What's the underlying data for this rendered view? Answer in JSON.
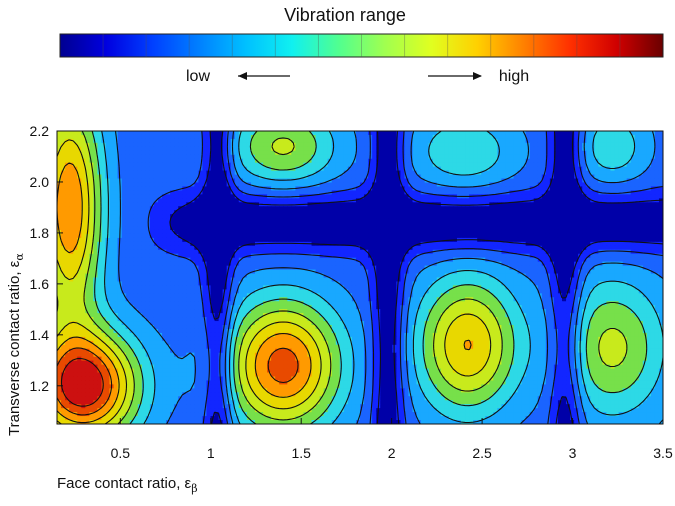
{
  "chart_data": {
    "type": "heatmap",
    "subtype": "filled-contour",
    "colorbar": {
      "title": "Vibration range",
      "low_label": "low",
      "high_label": "high",
      "colors": [
        "#000090",
        "#0000e0",
        "#0040ff",
        "#0080ff",
        "#00c0ff",
        "#10f0f0",
        "#50ff90",
        "#a0ff50",
        "#e0ff20",
        "#ffd000",
        "#ff8000",
        "#ff3000",
        "#d00000",
        "#6a0000"
      ]
    },
    "x_axis": {
      "label": "Face contact ratio, ε",
      "label_subscript": "β",
      "range": [
        0.15,
        3.5
      ],
      "ticks": [
        0.5,
        1,
        1.5,
        2,
        2.5,
        3,
        3.5
      ],
      "tick_labels": [
        "0.5",
        "1",
        "1.5",
        "2",
        "2.5",
        "3",
        "3.5"
      ]
    },
    "y_axis": {
      "label": "Transverse contact ratio, ε",
      "label_subscript": "α",
      "range": [
        1.05,
        2.2
      ],
      "ticks": [
        1.2,
        1.4,
        1.6,
        1.8,
        2.0,
        2.2
      ],
      "tick_labels": [
        "1.2",
        "1.4",
        "1.6",
        "1.8",
        "2.0",
        "2.2"
      ]
    },
    "levels": 10,
    "level_colors": [
      "#0000a8",
      "#1226ff",
      "#1a64ff",
      "#19a8ff",
      "#2dd9e6",
      "#77e04a",
      "#c8ea1c",
      "#e8d800",
      "#ff9a00",
      "#e84a00",
      "#cc1010"
    ],
    "grid": false,
    "peaks": [
      {
        "x": 0.22,
        "y": 1.9,
        "value": 8.1,
        "wx": 0.18,
        "wy": 0.45
      },
      {
        "x": 0.3,
        "y": 1.2,
        "value": 9.8,
        "wx": 0.3,
        "wy": 0.22
      },
      {
        "x": 1.4,
        "y": 1.28,
        "value": 8.6,
        "wx": 0.32,
        "wy": 0.26
      },
      {
        "x": 2.42,
        "y": 1.36,
        "value": 7.3,
        "wx": 0.28,
        "wy": 0.27
      },
      {
        "x": 1.4,
        "y": 2.14,
        "value": 5.6,
        "wx": 0.3,
        "wy": 0.16
      },
      {
        "x": 2.4,
        "y": 2.12,
        "value": 4.4,
        "wx": 0.3,
        "wy": 0.16
      },
      {
        "x": 3.22,
        "y": 1.35,
        "value": 5.7,
        "wx": 0.3,
        "wy": 0.28
      },
      {
        "x": 3.22,
        "y": 2.14,
        "value": 4.3,
        "wx": 0.2,
        "wy": 0.15
      }
    ],
    "valleys": {
      "vertical": [
        {
          "x": 1.04,
          "w": 0.08
        },
        {
          "x": 1.98,
          "w": 0.09
        },
        {
          "x": 2.96,
          "w": 0.09
        }
      ],
      "horizontal": {
        "y": 1.84,
        "w": 0.11,
        "from_x": 0.6
      }
    }
  }
}
